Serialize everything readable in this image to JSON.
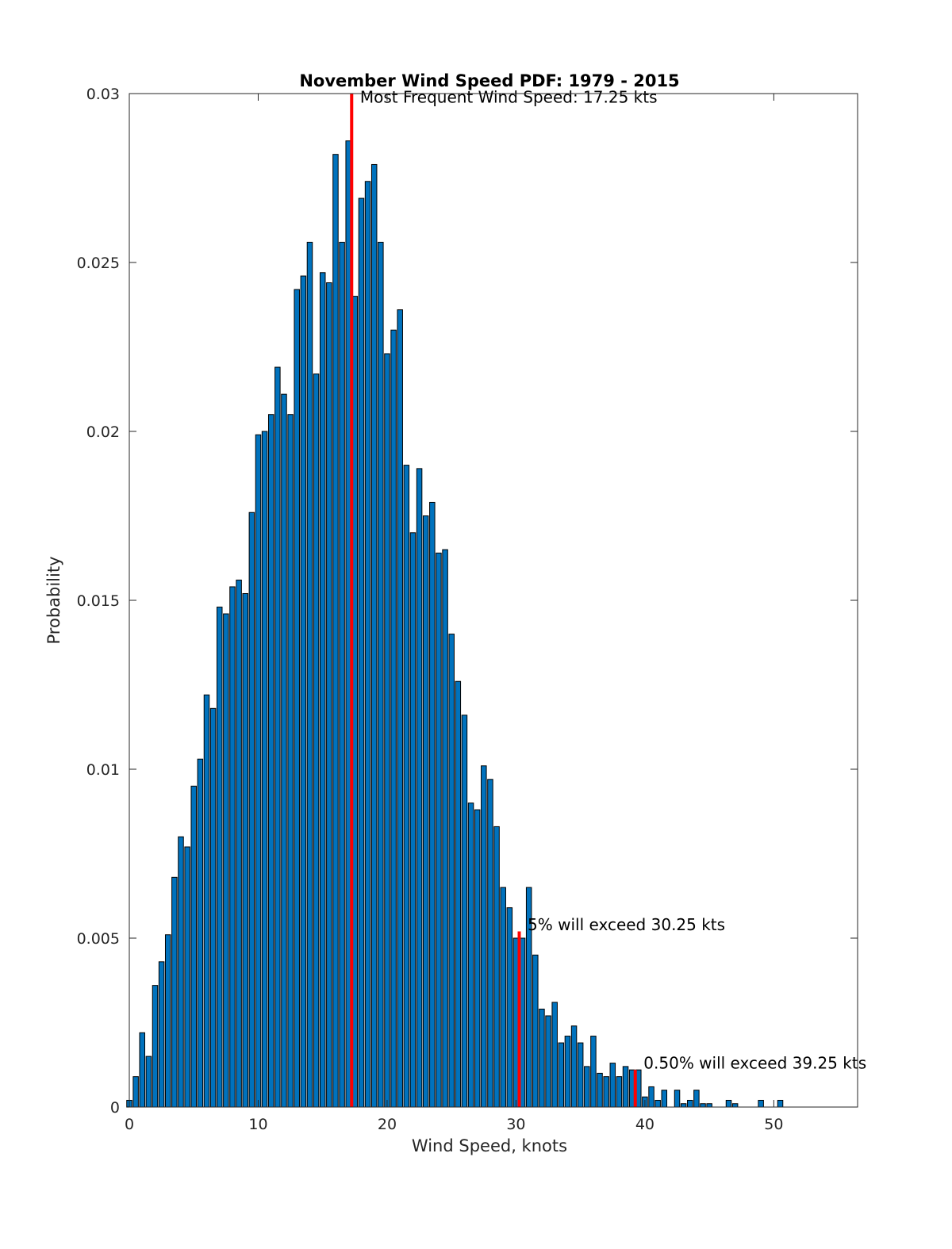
{
  "chart_data": {
    "type": "bar",
    "title": "November Wind Speed PDF: 1979 - 2015",
    "xlabel": "Wind Speed, knots",
    "ylabel": "Probability",
    "xlim": [
      0,
      56.5
    ],
    "ylim": [
      0,
      0.03
    ],
    "xticks": [
      0,
      10,
      20,
      30,
      40,
      50
    ],
    "xtick_labels": [
      "0",
      "10",
      "20",
      "30",
      "40",
      "50"
    ],
    "yticks": [
      0,
      0.005,
      0.01,
      0.015,
      0.02,
      0.025,
      0.03
    ],
    "ytick_labels": [
      "0",
      "0.005",
      "0.01",
      "0.015",
      "0.02",
      "0.025",
      "0.03"
    ],
    "grid": false,
    "bar_color": "#0072BD",
    "bar_edge_color": "#000000",
    "marker_color": "#FF0000",
    "bin_start": 0,
    "bin_width": 0.5,
    "values": [
      0.0002,
      0.0009,
      0.0022,
      0.0015,
      0.0036,
      0.0043,
      0.0051,
      0.0068,
      0.008,
      0.0077,
      0.0095,
      0.0103,
      0.0122,
      0.0118,
      0.0148,
      0.0146,
      0.0154,
      0.0156,
      0.0152,
      0.0176,
      0.0199,
      0.02,
      0.0205,
      0.0219,
      0.0211,
      0.0205,
      0.0242,
      0.0246,
      0.0256,
      0.0217,
      0.0247,
      0.0244,
      0.0282,
      0.0256,
      0.0286,
      0.024,
      0.0269,
      0.0274,
      0.0279,
      0.0256,
      0.0223,
      0.023,
      0.0236,
      0.019,
      0.017,
      0.0189,
      0.0175,
      0.0179,
      0.0164,
      0.0165,
      0.014,
      0.0126,
      0.0116,
      0.009,
      0.0088,
      0.0101,
      0.0097,
      0.0083,
      0.0065,
      0.0059,
      0.005,
      0.005,
      0.0065,
      0.0045,
      0.0029,
      0.0027,
      0.0031,
      0.0019,
      0.0021,
      0.0024,
      0.0019,
      0.0012,
      0.0021,
      0.001,
      0.0009,
      0.0013,
      0.0009,
      0.0012,
      0.0011,
      0.0011,
      0.0003,
      0.0006,
      0.0002,
      0.0005,
      0.0,
      0.0005,
      0.0001,
      0.0002,
      0.0005,
      0.0001,
      0.0001,
      0.0,
      0.0,
      0.0002,
      0.0001,
      0.0,
      0.0,
      0.0,
      0.0002,
      0.0,
      0.0,
      0.0002,
      0.0,
      0.0,
      0.0
    ],
    "markers": [
      {
        "x": 17.25,
        "y_top": 0.03,
        "label": "Most Frequent Wind Speed: 17.25 kts",
        "label_x": 17.9,
        "label_y": 0.0299
      },
      {
        "x": 30.25,
        "y_top": 0.0052,
        "label": "5% will exceed 30.25 kts",
        "label_x": 30.9,
        "label_y": 0.0054
      },
      {
        "x": 39.25,
        "y_top": 0.0011,
        "label": "0.50% will exceed 39.25 kts",
        "label_x": 39.9,
        "label_y": 0.0013
      }
    ]
  }
}
